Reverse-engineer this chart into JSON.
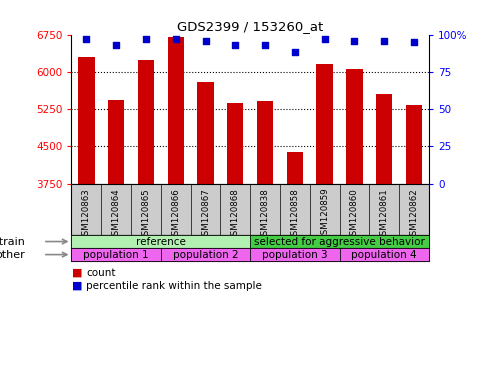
{
  "title": "GDS2399 / 153260_at",
  "categories": [
    "GSM120863",
    "GSM120864",
    "GSM120865",
    "GSM120866",
    "GSM120867",
    "GSM120868",
    "GSM120838",
    "GSM120858",
    "GSM120859",
    "GSM120860",
    "GSM120861",
    "GSM120862"
  ],
  "bar_values": [
    6290,
    5430,
    6230,
    6700,
    5800,
    5380,
    5420,
    4380,
    6150,
    6060,
    5560,
    5340
  ],
  "percentile_values": [
    97,
    93,
    97,
    97,
    96,
    93,
    93,
    88,
    97,
    96,
    96,
    95
  ],
  "ylim_left": [
    3750,
    6750
  ],
  "ylim_right": [
    0,
    100
  ],
  "yticks_left": [
    3750,
    4500,
    5250,
    6000,
    6750
  ],
  "yticks_right": [
    0,
    25,
    50,
    75,
    100
  ],
  "bar_color": "#cc0000",
  "dot_color": "#0000cc",
  "strain_groups": [
    {
      "label": "reference",
      "start": 0,
      "end": 6,
      "color": "#b2f0b2"
    },
    {
      "label": "selected for aggressive behavior",
      "start": 6,
      "end": 12,
      "color": "#44cc44"
    }
  ],
  "other_groups": [
    {
      "label": "population 1",
      "start": 0,
      "end": 3,
      "color": "#ee66ee"
    },
    {
      "label": "population 2",
      "start": 3,
      "end": 6,
      "color": "#ee66ee"
    },
    {
      "label": "population 3",
      "start": 6,
      "end": 9,
      "color": "#ee66ee"
    },
    {
      "label": "population 4",
      "start": 9,
      "end": 12,
      "color": "#ee66ee"
    }
  ],
  "legend_count_color": "#cc0000",
  "legend_dot_color": "#0000cc",
  "strain_label": "strain",
  "other_label": "other",
  "bg_color": "#ffffff",
  "tick_area_color": "#cccccc",
  "grid_yticks": [
    4500,
    5250,
    6000
  ]
}
